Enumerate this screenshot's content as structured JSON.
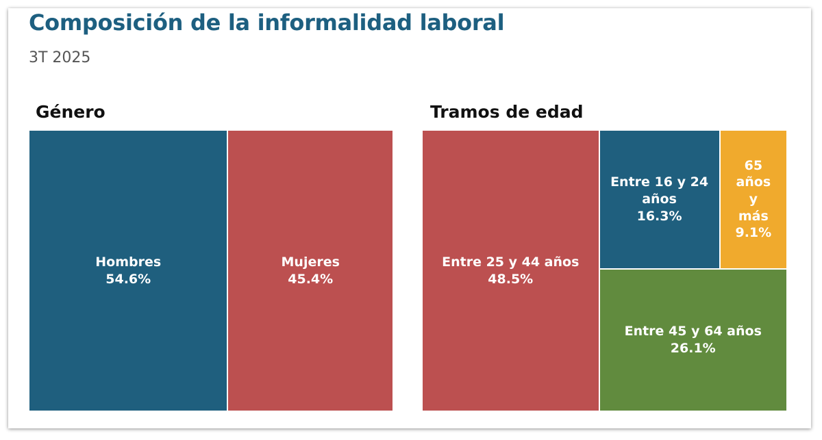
{
  "header": {
    "title": "Composición de la informalidad laboral",
    "subtitle": "3T 2025"
  },
  "chart_data": [
    {
      "type": "treemap",
      "title": "Género",
      "items": [
        {
          "name": "Hombres",
          "value": 54.6,
          "label": "54.6%",
          "color": "#1f5f7e"
        },
        {
          "name": "Mujeres",
          "value": 45.4,
          "label": "45.4%",
          "color": "#bc5050"
        }
      ]
    },
    {
      "type": "treemap",
      "title": "Tramos de edad",
      "items": [
        {
          "name": "Entre 25 y 44 años",
          "value": 48.5,
          "label": "48.5%",
          "color": "#bc5050"
        },
        {
          "name": "Entre 16 y 24 años",
          "value": 16.3,
          "label": "16.3%",
          "color": "#1f5f7e"
        },
        {
          "name": "65 años y más",
          "value": 9.1,
          "label": "9.1%",
          "color": "#f0aa2d"
        },
        {
          "name": "Entre 45 y 64 años",
          "value": 26.1,
          "label": "26.1%",
          "color": "#618b3e"
        }
      ]
    }
  ]
}
